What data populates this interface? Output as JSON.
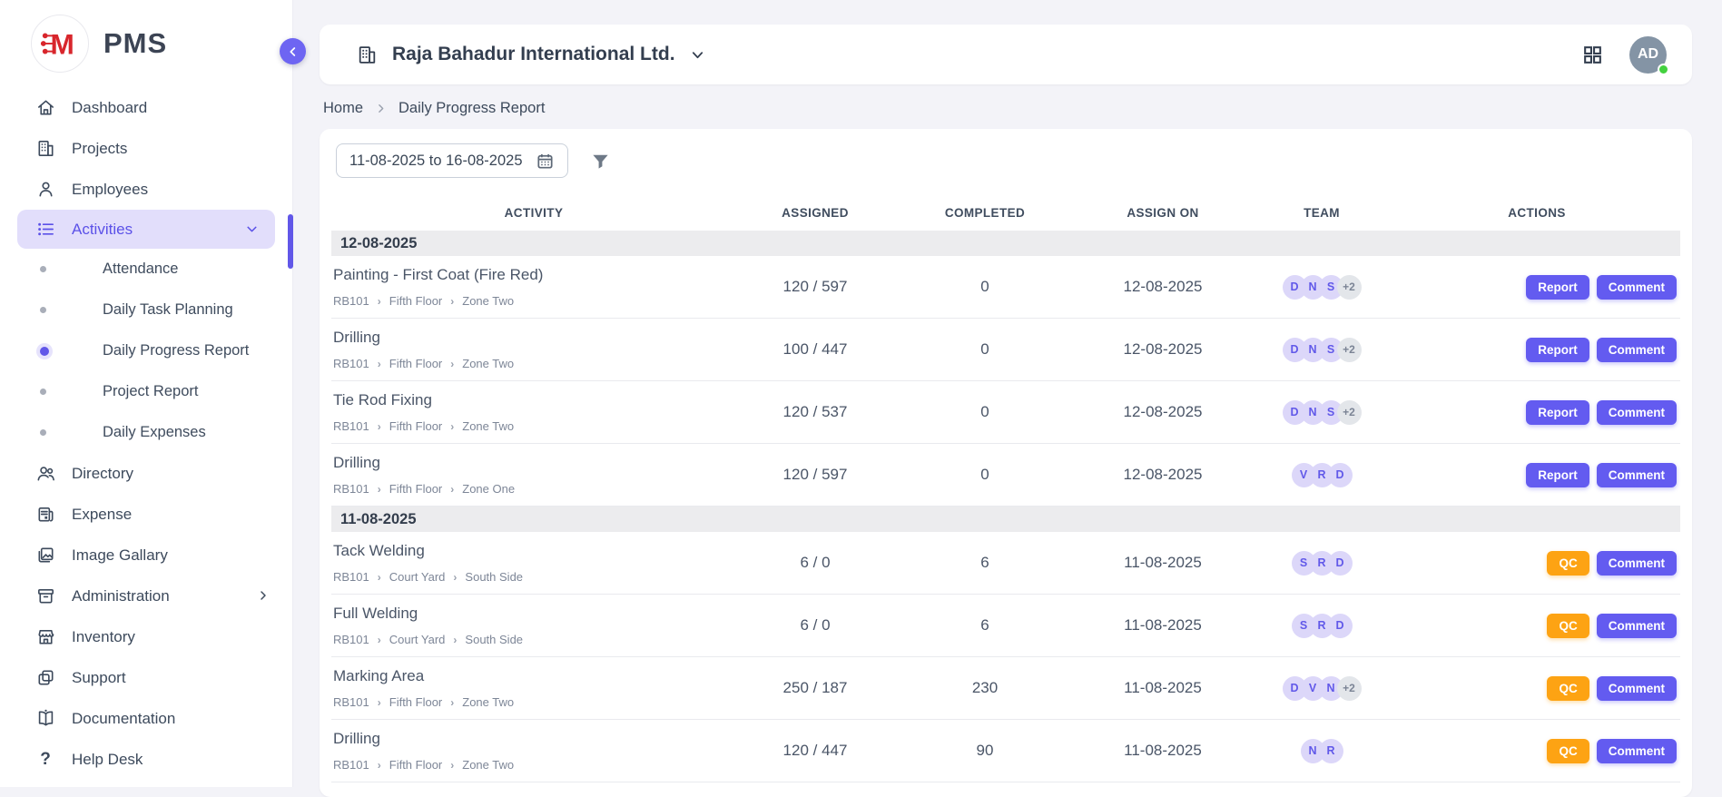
{
  "app": {
    "name": "PMS"
  },
  "sidebar": {
    "items": [
      {
        "label": "Dashboard",
        "icon": "home"
      },
      {
        "label": "Projects",
        "icon": "building"
      },
      {
        "label": "Employees",
        "icon": "person"
      },
      {
        "label": "Activities",
        "icon": "list",
        "active": true,
        "chevron": "down",
        "children": [
          {
            "label": "Attendance"
          },
          {
            "label": "Daily Task Planning"
          },
          {
            "label": "Daily Progress Report",
            "active": true
          },
          {
            "label": "Project Report"
          },
          {
            "label": "Daily Expenses"
          }
        ]
      },
      {
        "label": "Directory",
        "icon": "people"
      },
      {
        "label": "Expense",
        "icon": "receipt"
      },
      {
        "label": "Image Gallary",
        "icon": "image"
      },
      {
        "label": "Administration",
        "icon": "archive",
        "chevron": "right"
      },
      {
        "label": "Inventory",
        "icon": "store"
      },
      {
        "label": "Support",
        "icon": "copy"
      },
      {
        "label": "Documentation",
        "icon": "book"
      },
      {
        "label": "Help Desk",
        "icon": "question"
      }
    ]
  },
  "header": {
    "company": "Raja Bahadur International Ltd.",
    "avatar": "AD"
  },
  "breadcrumb": [
    "Home",
    "Daily Progress Report"
  ],
  "filters": {
    "date_range": "11-08-2025 to 16-08-2025"
  },
  "table": {
    "columns": [
      "ACTIVITY",
      "ASSIGNED",
      "COMPLETED",
      "ASSIGN ON",
      "TEAM",
      "ACTIONS"
    ],
    "groups": [
      {
        "date": "12-08-2025",
        "rows": [
          {
            "activity": "Painting - First Coat (Fire Red)",
            "path": [
              "RB101",
              "Fifth Floor",
              "Zone Two"
            ],
            "assigned": "120 / 597",
            "completed": "0",
            "assign_on": "12-08-2025",
            "team": [
              "D",
              "N",
              "S"
            ],
            "team_extra": "+2",
            "actions": [
              {
                "label": "Report",
                "type": "primary"
              },
              {
                "label": "Comment",
                "type": "primary"
              }
            ]
          },
          {
            "activity": "Drilling",
            "path": [
              "RB101",
              "Fifth Floor",
              "Zone Two"
            ],
            "assigned": "100 / 447",
            "completed": "0",
            "assign_on": "12-08-2025",
            "team": [
              "D",
              "N",
              "S"
            ],
            "team_extra": "+2",
            "actions": [
              {
                "label": "Report",
                "type": "primary"
              },
              {
                "label": "Comment",
                "type": "primary"
              }
            ]
          },
          {
            "activity": "Tie Rod Fixing",
            "path": [
              "RB101",
              "Fifth Floor",
              "Zone Two"
            ],
            "assigned": "120 / 537",
            "completed": "0",
            "assign_on": "12-08-2025",
            "team": [
              "D",
              "N",
              "S"
            ],
            "team_extra": "+2",
            "actions": [
              {
                "label": "Report",
                "type": "primary"
              },
              {
                "label": "Comment",
                "type": "primary"
              }
            ]
          },
          {
            "activity": "Drilling",
            "path": [
              "RB101",
              "Fifth Floor",
              "Zone One"
            ],
            "assigned": "120 / 597",
            "completed": "0",
            "assign_on": "12-08-2025",
            "team": [
              "V",
              "R",
              "D"
            ],
            "team_extra": "",
            "actions": [
              {
                "label": "Report",
                "type": "primary"
              },
              {
                "label": "Comment",
                "type": "primary"
              }
            ]
          }
        ]
      },
      {
        "date": "11-08-2025",
        "rows": [
          {
            "activity": "Tack Welding",
            "path": [
              "RB101",
              "Court Yard",
              "South Side"
            ],
            "assigned": "6 / 0",
            "completed": "6",
            "assign_on": "11-08-2025",
            "team": [
              "S",
              "R",
              "D"
            ],
            "team_extra": "",
            "actions": [
              {
                "label": "QC",
                "type": "warning"
              },
              {
                "label": "Comment",
                "type": "primary"
              }
            ]
          },
          {
            "activity": "Full Welding",
            "path": [
              "RB101",
              "Court Yard",
              "South Side"
            ],
            "assigned": "6 / 0",
            "completed": "6",
            "assign_on": "11-08-2025",
            "team": [
              "S",
              "R",
              "D"
            ],
            "team_extra": "",
            "actions": [
              {
                "label": "QC",
                "type": "warning"
              },
              {
                "label": "Comment",
                "type": "primary"
              }
            ]
          },
          {
            "activity": "Marking Area",
            "path": [
              "RB101",
              "Fifth Floor",
              "Zone Two"
            ],
            "assigned": "250 / 187",
            "completed": "230",
            "assign_on": "11-08-2025",
            "team": [
              "D",
              "V",
              "N"
            ],
            "team_extra": "+2",
            "actions": [
              {
                "label": "QC",
                "type": "warning"
              },
              {
                "label": "Comment",
                "type": "primary"
              }
            ]
          },
          {
            "activity": "Drilling",
            "path": [
              "RB101",
              "Fifth Floor",
              "Zone Two"
            ],
            "assigned": "120 / 447",
            "completed": "90",
            "assign_on": "11-08-2025",
            "team": [
              "N",
              "R"
            ],
            "team_extra": "",
            "actions": [
              {
                "label": "QC",
                "type": "warning"
              },
              {
                "label": "Comment",
                "type": "primary"
              }
            ]
          }
        ]
      }
    ]
  },
  "colors": {
    "accent": "#635bf0",
    "accent_light": "#e2defb",
    "warning": "#fda313",
    "logo_red": "#d8262c",
    "online_green": "#43d13f"
  }
}
